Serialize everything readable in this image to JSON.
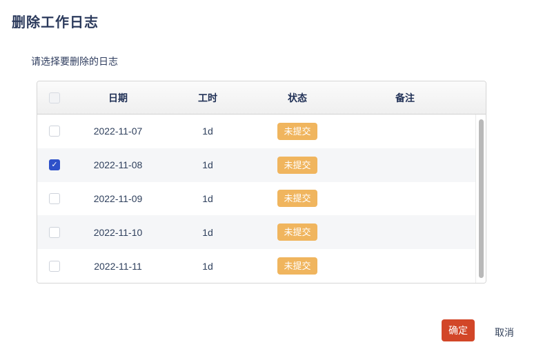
{
  "dialog": {
    "title": "删除工作日志",
    "instruction": "请选择要删除的日志",
    "confirm_label": "确定",
    "cancel_label": "取消"
  },
  "table": {
    "columns": {
      "date": "日期",
      "hours": "工时",
      "status": "状态",
      "remark": "备注"
    },
    "select_all_checked": false,
    "rows": [
      {
        "date": "2022-11-07",
        "hours": "1d",
        "status": "未提交",
        "remark": "",
        "checked": false
      },
      {
        "date": "2022-11-08",
        "hours": "1d",
        "status": "未提交",
        "remark": "",
        "checked": true
      },
      {
        "date": "2022-11-09",
        "hours": "1d",
        "status": "未提交",
        "remark": "",
        "checked": false
      },
      {
        "date": "2022-11-10",
        "hours": "1d",
        "status": "未提交",
        "remark": "",
        "checked": false
      },
      {
        "date": "2022-11-11",
        "hours": "1d",
        "status": "未提交",
        "remark": "",
        "checked": false
      }
    ]
  },
  "colors": {
    "accent_checkbox_blue": "#2e51c9",
    "status_badge_orange": "#f0b55e",
    "confirm_button_red": "#d24628",
    "title_navy": "#2b3a5c"
  }
}
